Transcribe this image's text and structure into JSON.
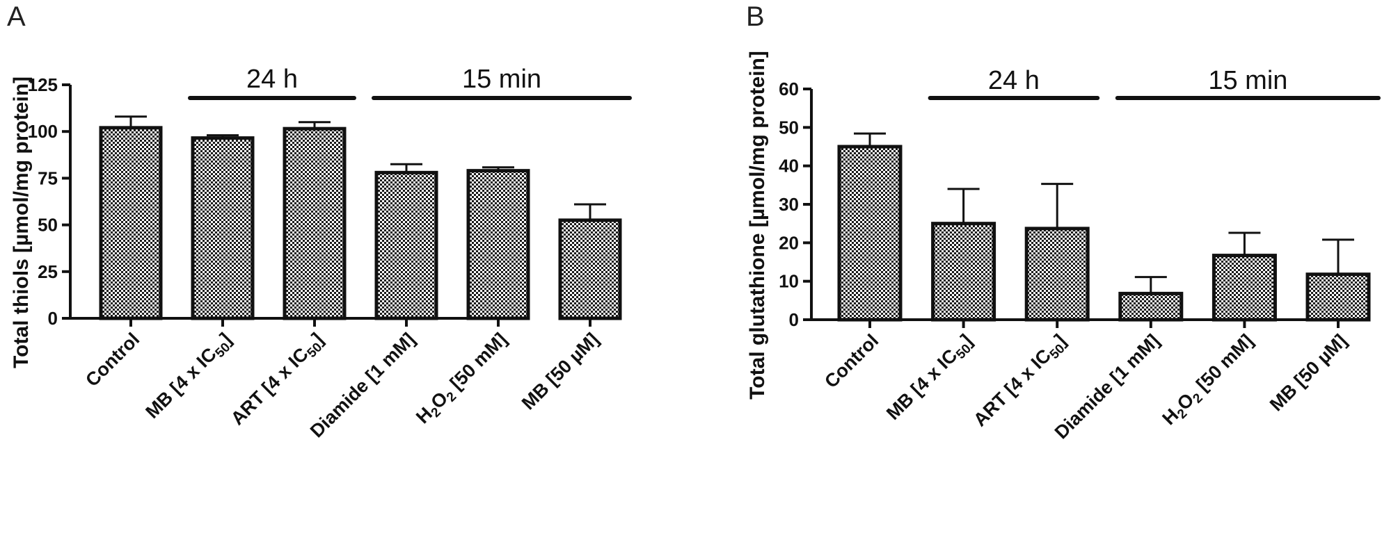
{
  "figure": {
    "background": "#ffffff",
    "bar_fill": "checkerboard",
    "ink_color": "#111111"
  },
  "chart_data": [
    {
      "type": "bar",
      "panel_label": "A",
      "categories": [
        {
          "label": "Control"
        },
        {
          "label": "MB [4 x IC",
          "subscript": "50",
          "suffix": "]"
        },
        {
          "label": "ART [4 x IC",
          "subscript": "50",
          "suffix": "]"
        },
        {
          "label": "Diamide [1 mM]"
        },
        {
          "label": "H",
          "subscript": "2",
          "mid": "O",
          "subscript2": "2",
          "suffix": " [50 mM]"
        },
        {
          "label": "MB [50 µM]"
        }
      ],
      "values": [
        102,
        96.5,
        101.5,
        78,
        79,
        52.5
      ],
      "errors": [
        6,
        1.5,
        3.5,
        4.5,
        1.8,
        8.5
      ],
      "ylabel": "Total thiols [µmol/mg protein]",
      "ylim": [
        0,
        125
      ],
      "yticks": [
        "0",
        "25",
        "50",
        "75",
        "100",
        "125"
      ],
      "brackets": [
        {
          "label": "24 h",
          "from": 1,
          "to": 2
        },
        {
          "label": "15 min",
          "from": 3,
          "to": 5
        }
      ],
      "grid": false,
      "legend": "none"
    },
    {
      "type": "bar",
      "panel_label": "B",
      "categories": [
        {
          "label": "Control"
        },
        {
          "label": "MB [4 x IC",
          "subscript": "50",
          "suffix": "]"
        },
        {
          "label": "ART [4 x IC",
          "subscript": "50",
          "suffix": "]"
        },
        {
          "label": "Diamide [1 mM]"
        },
        {
          "label": "H",
          "subscript": "2",
          "mid": "O",
          "subscript2": "2",
          "suffix": " [50 mM]"
        },
        {
          "label": "MB [50 µM]"
        }
      ],
      "values": [
        45,
        25,
        23.7,
        6.8,
        16.7,
        11.8
      ],
      "errors": [
        3.4,
        9,
        11.6,
        4.3,
        5.9,
        9
      ],
      "ylabel": "Total glutathione [µmol/mg protein]",
      "ylim": [
        0,
        60
      ],
      "yticks": [
        "0",
        "10",
        "20",
        "30",
        "40",
        "50",
        "60"
      ],
      "brackets": [
        {
          "label": "24 h",
          "from": 1,
          "to": 2
        },
        {
          "label": "15 min",
          "from": 3,
          "to": 5
        }
      ],
      "grid": false,
      "legend": "none"
    }
  ]
}
